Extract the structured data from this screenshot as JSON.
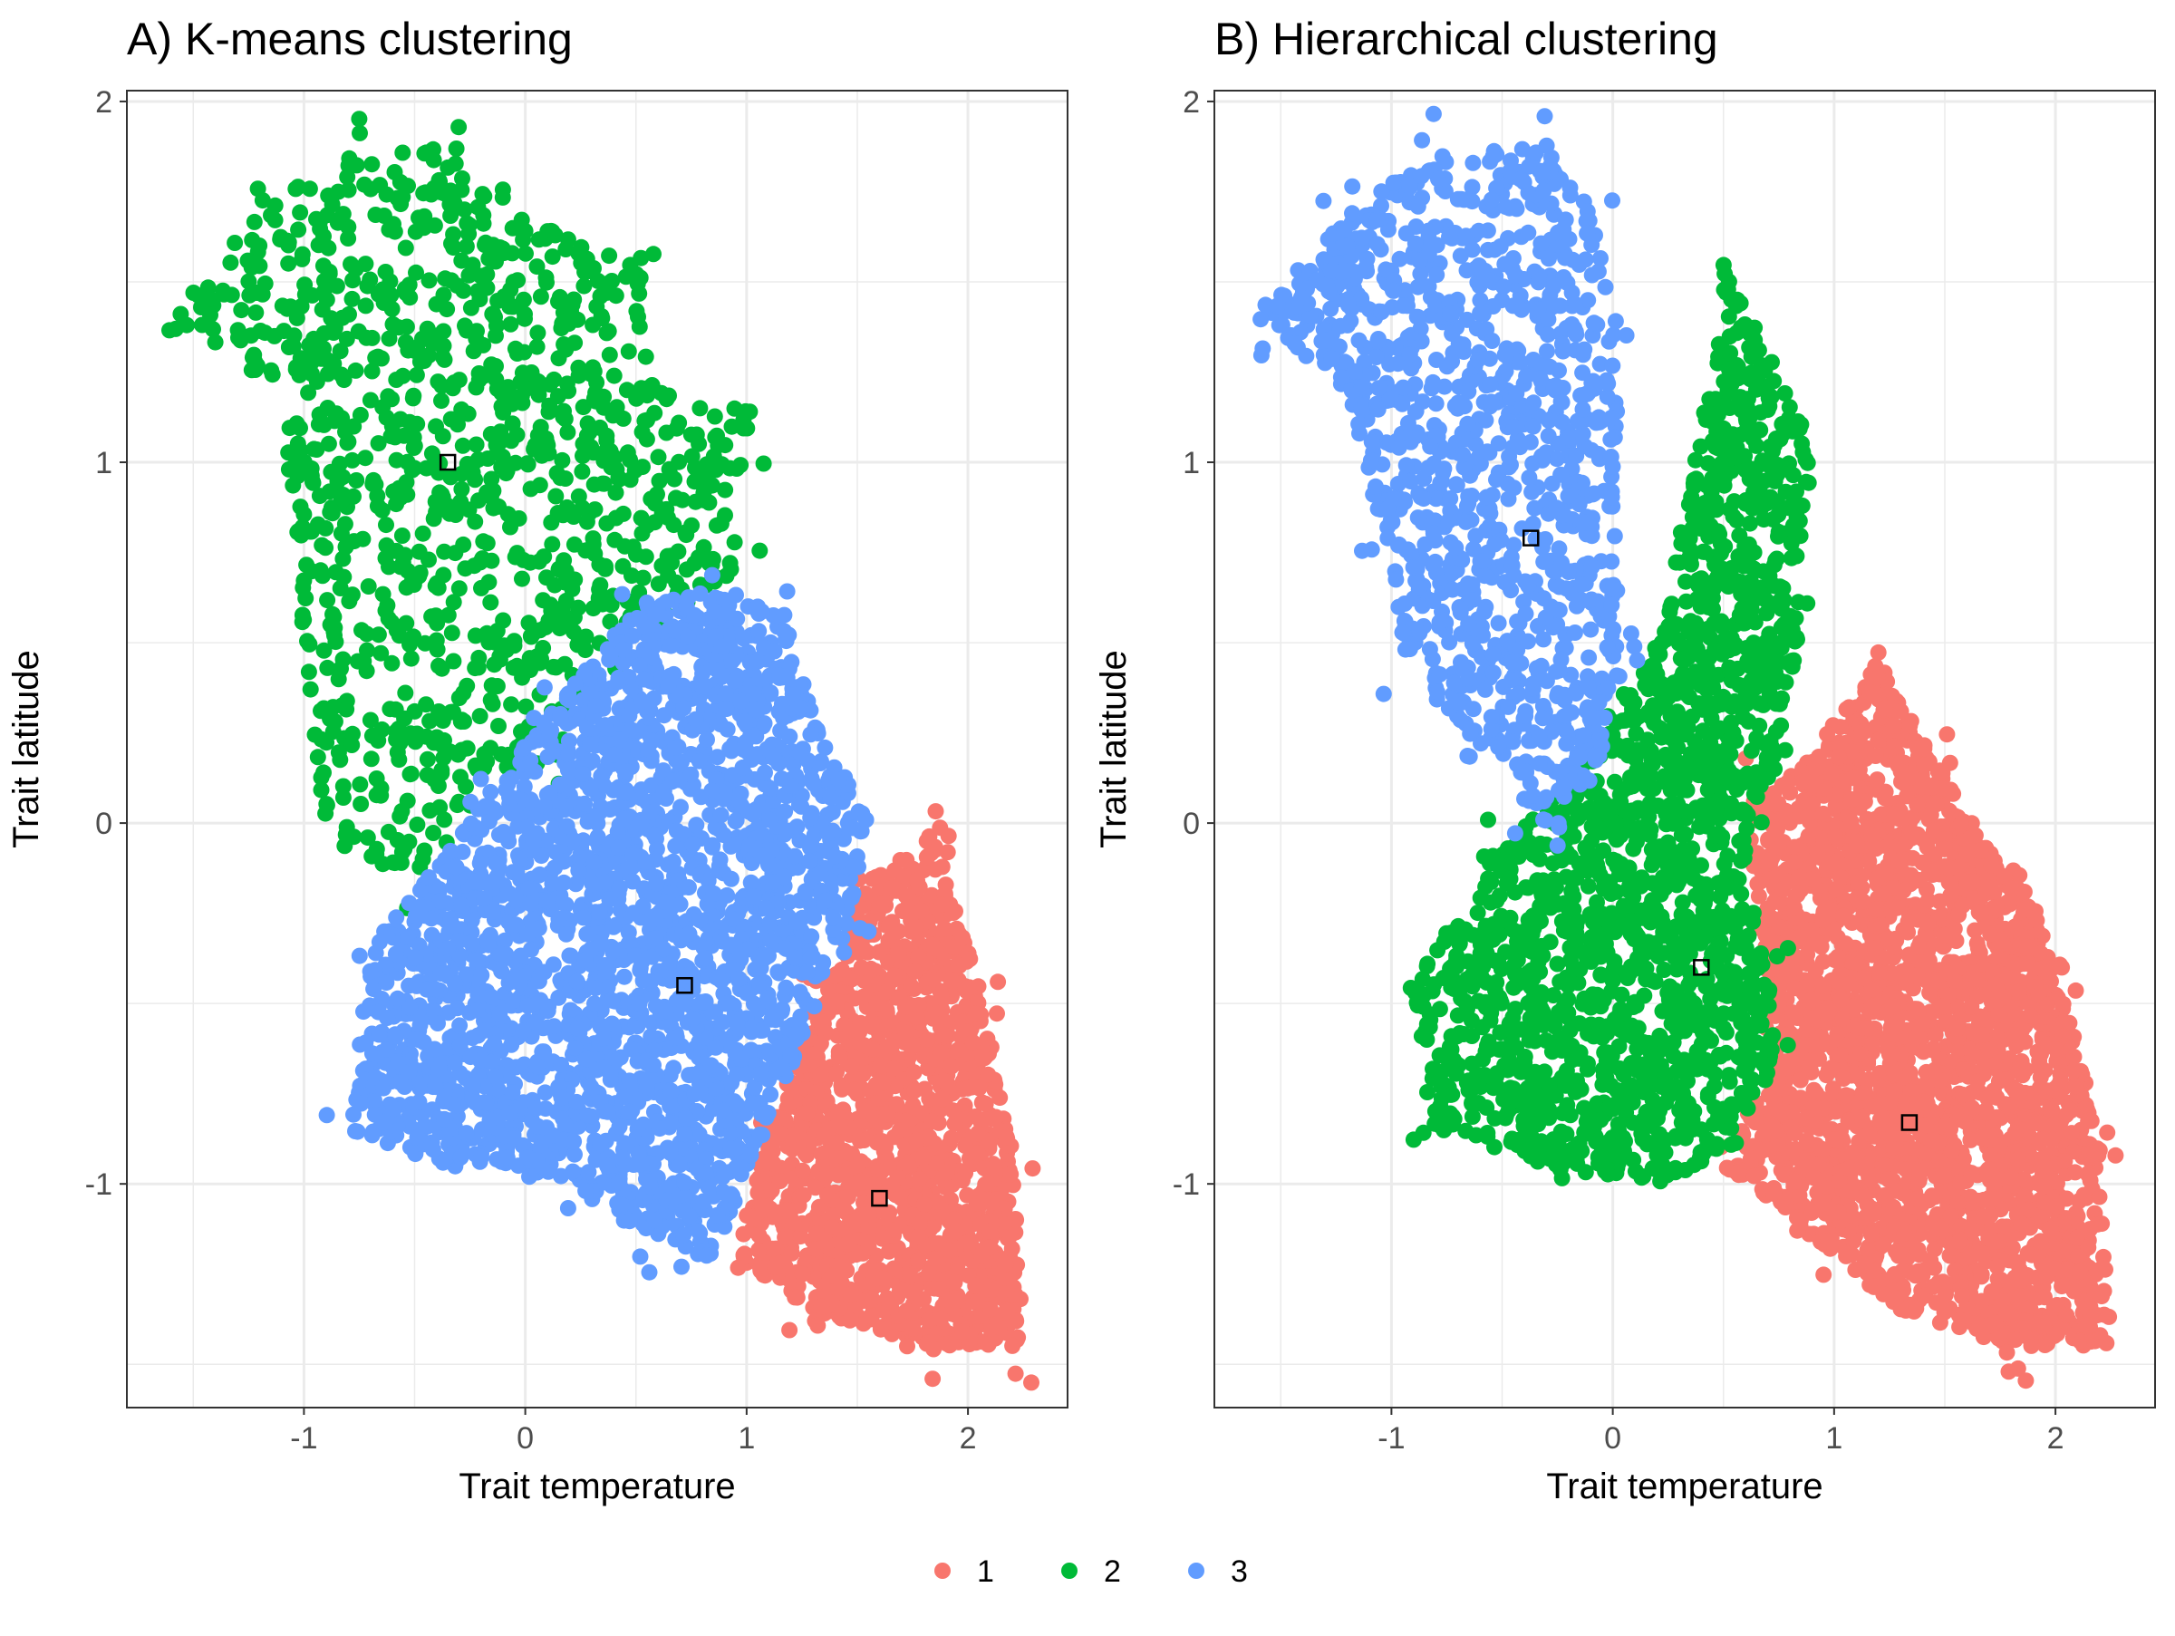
{
  "colors": {
    "1": "#F8766D",
    "2": "#00BA38",
    "3": "#619CFF",
    "grid": "#EBEBEB",
    "border": "#333333",
    "background": "#FFFFFF"
  },
  "legend": {
    "items": [
      {
        "label": "1",
        "color": "#F8766D"
      },
      {
        "label": "2",
        "color": "#00BA38"
      },
      {
        "label": "3",
        "color": "#619CFF"
      }
    ]
  },
  "chart_data": [
    {
      "type": "scatter",
      "title": "A) K-means clustering",
      "xlabel": "Trait temperature",
      "ylabel": "Trait latitude",
      "xlim": [
        -1.8,
        2.45
      ],
      "ylim": [
        -1.62,
        2.03
      ],
      "xticks": [
        -1,
        0,
        1,
        2
      ],
      "yticks": [
        -1,
        0,
        1,
        2
      ],
      "xtick_labels": [
        "-1",
        "0",
        "1",
        "2"
      ],
      "ytick_labels": [
        "-1",
        "0",
        "1",
        "2"
      ],
      "grid": true,
      "legend_position": "bottom",
      "clusters": [
        {
          "name": "1",
          "centroid": [
            1.6,
            -1.04
          ],
          "n_points": 1400,
          "region": [
            [
              1.55,
              -0.15
            ],
            [
              1.85,
              -0.05
            ],
            [
              2.05,
              -0.45
            ],
            [
              2.2,
              -0.9
            ],
            [
              2.25,
              -1.45
            ],
            [
              1.8,
              -1.45
            ],
            [
              1.3,
              -1.35
            ],
            [
              0.95,
              -1.2
            ],
            [
              1.1,
              -0.85
            ],
            [
              1.35,
              -0.45
            ]
          ]
        },
        {
          "name": "2",
          "centroid": [
            -0.35,
            1.0
          ],
          "n_points": 1100,
          "region": [
            [
              -1.6,
              1.4
            ],
            [
              -1.2,
              1.7
            ],
            [
              -0.8,
              1.85
            ],
            [
              -0.3,
              1.88
            ],
            [
              -0.1,
              1.7
            ],
            [
              0.5,
              1.55
            ],
            [
              0.6,
              1.2
            ],
            [
              1.0,
              1.1
            ],
            [
              0.95,
              0.7
            ],
            [
              0.4,
              0.45
            ],
            [
              0.15,
              0.2
            ],
            [
              -0.3,
              0.0
            ],
            [
              -0.5,
              -0.15
            ],
            [
              -0.9,
              -0.05
            ],
            [
              -1.0,
              0.5
            ],
            [
              -1.1,
              1.2
            ]
          ]
        },
        {
          "name": "3",
          "centroid": [
            0.72,
            -0.45
          ],
          "n_points": 2400,
          "region": [
            [
              0.1,
              0.3
            ],
            [
              0.5,
              0.6
            ],
            [
              0.9,
              0.65
            ],
            [
              1.2,
              0.55
            ],
            [
              1.3,
              0.3
            ],
            [
              1.55,
              0.0
            ],
            [
              1.45,
              -0.3
            ],
            [
              1.25,
              -0.6
            ],
            [
              1.05,
              -0.9
            ],
            [
              0.85,
              -1.2
            ],
            [
              0.55,
              -1.15
            ],
            [
              0.2,
              -1.0
            ],
            [
              -0.35,
              -0.95
            ],
            [
              -0.8,
              -0.85
            ],
            [
              -0.7,
              -0.35
            ],
            [
              -0.45,
              -0.15
            ],
            [
              -0.2,
              0.05
            ]
          ]
        }
      ]
    },
    {
      "type": "scatter",
      "title": "B) Hierarchical clustering",
      "xlabel": "Trait temperature",
      "ylabel": "Trait latitude",
      "xlim": [
        -1.8,
        2.45
      ],
      "ylim": [
        -1.62,
        2.03
      ],
      "xticks": [
        -1,
        0,
        1,
        2
      ],
      "yticks": [
        -1,
        0,
        1,
        2
      ],
      "xtick_labels": [
        "-1",
        "0",
        "1",
        "2"
      ],
      "ytick_labels": [
        "-1",
        "0",
        "1",
        "2"
      ],
      "grid": true,
      "legend_position": "bottom",
      "clusters": [
        {
          "name": "1",
          "centroid": [
            1.34,
            -0.83
          ],
          "n_points": 2600,
          "region": [
            [
              0.85,
              0.15
            ],
            [
              1.2,
              0.45
            ],
            [
              1.45,
              0.2
            ],
            [
              1.6,
              0.0
            ],
            [
              1.85,
              -0.15
            ],
            [
              2.05,
              -0.45
            ],
            [
              2.2,
              -0.9
            ],
            [
              2.25,
              -1.45
            ],
            [
              1.8,
              -1.45
            ],
            [
              1.3,
              -1.35
            ],
            [
              0.9,
              -1.15
            ],
            [
              0.5,
              -0.95
            ],
            [
              0.75,
              -0.6
            ],
            [
              0.65,
              -0.25
            ],
            [
              0.6,
              0.05
            ]
          ]
        },
        {
          "name": "2",
          "centroid": [
            0.4,
            -0.4
          ],
          "n_points": 1800,
          "region": [
            [
              0.0,
              0.3
            ],
            [
              0.2,
              0.5
            ],
            [
              0.5,
              1.4
            ],
            [
              0.5,
              1.55
            ],
            [
              0.9,
              1.05
            ],
            [
              0.85,
              0.55
            ],
            [
              0.75,
              0.2
            ],
            [
              0.6,
              -0.05
            ],
            [
              0.7,
              -0.4
            ],
            [
              0.75,
              -0.65
            ],
            [
              0.55,
              -0.9
            ],
            [
              0.2,
              -1.0
            ],
            [
              -0.3,
              -0.95
            ],
            [
              -0.8,
              -0.85
            ],
            [
              -0.9,
              -0.45
            ],
            [
              -0.55,
              -0.1
            ],
            [
              -0.3,
              0.05
            ]
          ]
        },
        {
          "name": "3",
          "centroid": [
            -0.37,
            0.79
          ],
          "n_points": 1100,
          "region": [
            [
              -1.6,
              1.4
            ],
            [
              -1.2,
              1.7
            ],
            [
              -0.8,
              1.85
            ],
            [
              -0.3,
              1.88
            ],
            [
              -0.1,
              1.7
            ],
            [
              0.05,
              1.35
            ],
            [
              0.0,
              0.9
            ],
            [
              0.05,
              0.45
            ],
            [
              -0.05,
              0.15
            ],
            [
              -0.3,
              0.0
            ],
            [
              -0.6,
              0.2
            ],
            [
              -0.95,
              0.45
            ],
            [
              -1.05,
              0.8
            ],
            [
              -1.2,
              1.2
            ]
          ]
        }
      ]
    }
  ]
}
